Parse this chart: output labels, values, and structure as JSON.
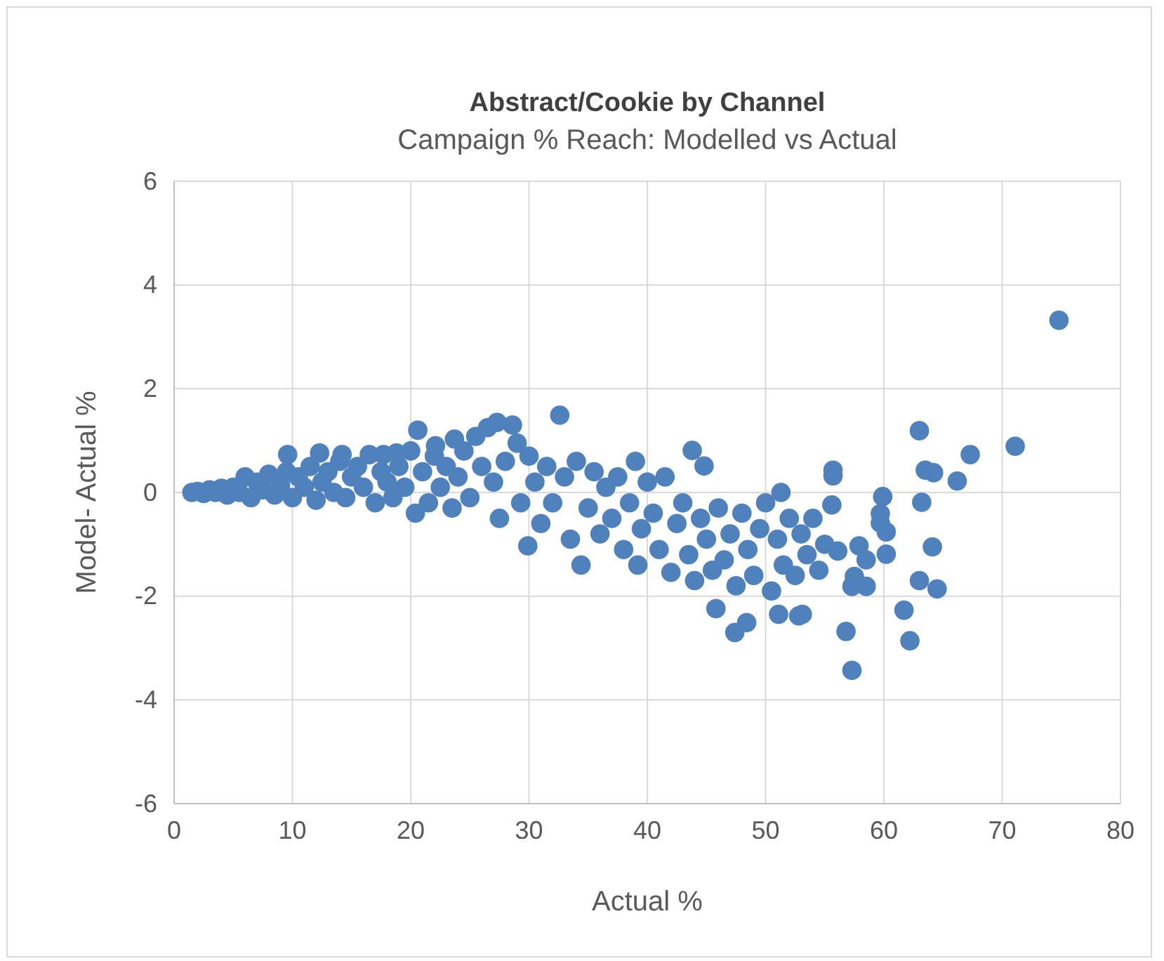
{
  "chart_data": {
    "type": "scatter",
    "title": "Abstract/Cookie by Channel",
    "subtitle": "Campaign % Reach: Modelled vs Actual",
    "xlabel": "Actual %",
    "ylabel": "Model- Actual  %",
    "xlim": [
      0,
      80
    ],
    "ylim": [
      -6,
      6
    ],
    "xticks": [
      0,
      10,
      20,
      30,
      40,
      50,
      60,
      70,
      80
    ],
    "yticks": [
      6,
      4,
      2,
      0,
      -2,
      -4,
      -6
    ],
    "grid": true,
    "marker": "circle",
    "series": [
      {
        "color": "#4f81bd",
        "x": [
          1.5,
          2,
          2.5,
          3,
          3.5,
          4,
          4.5,
          5,
          5.5,
          6,
          6.5,
          7,
          7.5,
          8,
          8.5,
          9,
          9.5,
          9.6,
          10,
          10.5,
          11,
          11.5,
          12,
          12.3,
          12.5,
          13,
          13.5,
          14,
          14.2,
          14.5,
          15,
          15.5,
          16,
          16.5,
          17,
          17.5,
          17.7,
          18,
          18.5,
          18.8,
          19,
          19.5,
          20,
          20.4,
          20.6,
          21,
          21.5,
          22,
          22.1,
          22.5,
          23,
          23.5,
          23.7,
          24,
          24.5,
          25,
          25.5,
          26,
          26.5,
          27,
          27.3,
          27.5,
          28,
          28.6,
          29,
          29.3,
          29.9,
          30,
          30.5,
          31,
          31.5,
          32,
          32.6,
          33,
          33.5,
          34,
          34.4,
          35,
          35.5,
          36,
          36.5,
          37,
          37.5,
          38,
          38.5,
          39,
          39.2,
          39.5,
          40,
          40.5,
          41,
          41.5,
          42,
          42.5,
          43,
          43.5,
          43.8,
          44,
          44.5,
          44.8,
          45,
          45.5,
          45.8,
          46,
          46.5,
          47,
          47.4,
          47.5,
          48,
          48.4,
          48.5,
          49,
          49.5,
          50,
          50.5,
          51,
          51.1,
          51.3,
          51.5,
          52,
          52.5,
          52.8,
          53,
          53.1,
          53.5,
          54,
          54.5,
          55,
          55.6,
          55.7,
          55.7,
          56.1,
          56.8,
          57.3,
          57.3,
          57.5,
          57.9,
          58.5,
          58.5,
          59.7,
          59.7,
          59.9,
          60.2,
          60.2,
          61.7,
          62.2,
          63,
          63,
          63.2,
          63.5,
          64.1,
          64.2,
          64.5,
          66.2,
          67.3,
          71.1,
          74.8
        ],
        "values": [
          0,
          0.02,
          -0.02,
          0.05,
          0,
          0.08,
          -0.05,
          0.1,
          0,
          0.3,
          -0.1,
          0.2,
          0.05,
          0.35,
          -0.05,
          0.15,
          0.4,
          0.73,
          -0.1,
          0.3,
          0.1,
          0.5,
          -0.15,
          0.76,
          0.2,
          0.4,
          0,
          0.6,
          0.73,
          -0.1,
          0.3,
          0.5,
          0.1,
          0.73,
          -0.2,
          0.4,
          0.73,
          0.2,
          -0.1,
          0.76,
          0.5,
          0.1,
          0.8,
          -0.4,
          1.2,
          0.4,
          -0.2,
          0.7,
          0.9,
          0.1,
          0.5,
          -0.3,
          1.03,
          0.3,
          0.8,
          -0.1,
          1.08,
          0.5,
          1.25,
          0.2,
          1.35,
          -0.5,
          0.6,
          1.3,
          0.95,
          -0.2,
          -1.03,
          0.7,
          0.2,
          -0.6,
          0.5,
          -0.2,
          1.49,
          0.3,
          -0.9,
          0.6,
          -1.4,
          -0.3,
          0.4,
          -0.8,
          0.1,
          -0.5,
          0.3,
          -1.1,
          -0.2,
          0.6,
          -1.4,
          -0.7,
          0.2,
          -0.4,
          -1.1,
          0.3,
          -1.54,
          -0.6,
          -0.2,
          -1.2,
          0.81,
          -1.7,
          -0.5,
          0.51,
          -0.9,
          -1.5,
          -2.24,
          -0.3,
          -1.3,
          -0.8,
          -2.7,
          -1.8,
          -0.4,
          -2.51,
          -1.1,
          -1.6,
          -0.7,
          -0.2,
          -1.9,
          -0.9,
          -2.35,
          0,
          -1.4,
          -0.5,
          -1.6,
          -2.38,
          -0.8,
          -2.35,
          -1.2,
          -0.5,
          -1.5,
          -1,
          -0.24,
          0.43,
          0.32,
          -1.13,
          -2.68,
          -3.43,
          -1.81,
          -1.62,
          -1.03,
          -1.3,
          -1.81,
          -0.41,
          -0.59,
          -0.08,
          -0.76,
          -1.19,
          -2.27,
          -2.86,
          1.19,
          -1.7,
          -0.19,
          0.43,
          -1.05,
          0.38,
          -1.86,
          0.22,
          0.73,
          0.89,
          3.32
        ]
      }
    ]
  }
}
